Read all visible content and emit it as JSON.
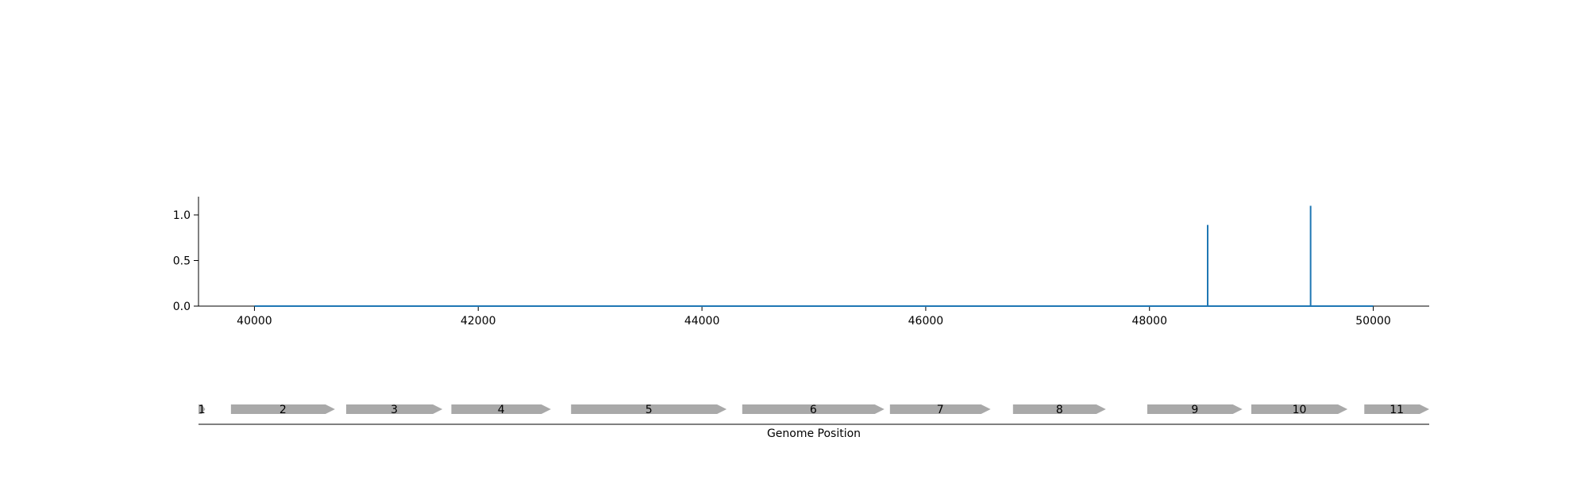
{
  "chart_data": {
    "type": "line",
    "title": "",
    "xlabel": "Genome Position",
    "ylabel": "",
    "xlim": [
      39500,
      50500
    ],
    "ylim": [
      0,
      1.2
    ],
    "grid": false,
    "x_ticks": [
      40000,
      42000,
      44000,
      46000,
      48000,
      50000
    ],
    "y_ticks": [
      0.0,
      0.5,
      1.0
    ],
    "y_tick_labels": [
      "0.0",
      "0.5",
      "1.0"
    ],
    "line_color": "#1f77b4",
    "series": [
      {
        "x": [
          40000,
          48520,
          48520,
          48520,
          49440,
          49440,
          49440,
          50000
        ],
        "y": [
          0,
          0,
          0.89,
          0,
          0,
          1.1,
          0,
          0
        ]
      }
    ],
    "genes": {
      "color": "#a9a9a9",
      "items": [
        {
          "label": "1",
          "start": 39500,
          "end": 39560
        },
        {
          "label": "2",
          "start": 39790,
          "end": 40720
        },
        {
          "label": "3",
          "start": 40820,
          "end": 41680
        },
        {
          "label": "4",
          "start": 41760,
          "end": 42650
        },
        {
          "label": "5",
          "start": 42830,
          "end": 44220
        },
        {
          "label": "6",
          "start": 44360,
          "end": 45630
        },
        {
          "label": "7",
          "start": 45680,
          "end": 46580
        },
        {
          "label": "8",
          "start": 46780,
          "end": 47610
        },
        {
          "label": "9",
          "start": 47980,
          "end": 48830
        },
        {
          "label": "10",
          "start": 48910,
          "end": 49770
        },
        {
          "label": "11",
          "start": 49920,
          "end": 50500
        }
      ]
    }
  }
}
